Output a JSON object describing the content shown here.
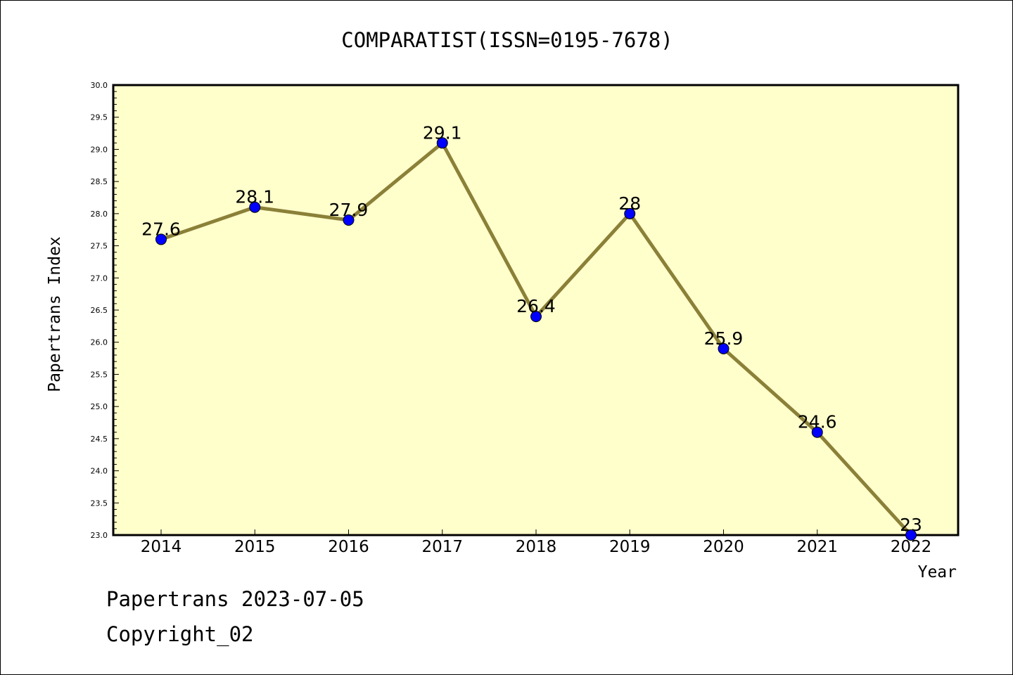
{
  "footer": {
    "line1": "Papertrans 2023-07-05",
    "line2": "Copyright_02"
  },
  "chart_data": {
    "type": "line",
    "title": "COMPARATIST(ISSN=0195-7678)",
    "xlabel": "Year",
    "ylabel": "Papertrans Index",
    "categories": [
      "2014",
      "2015",
      "2016",
      "2017",
      "2018",
      "2019",
      "2020",
      "2021",
      "2022"
    ],
    "series": [
      {
        "values": [
          27.6,
          28.1,
          27.9,
          29.1,
          26.4,
          28.0,
          25.9,
          24.6,
          23.0
        ],
        "labels": [
          "27.6",
          "28.1",
          "27.9",
          "29.1",
          "26.4",
          "28",
          "25.9",
          "24.6",
          "23"
        ],
        "line_color": "#8b8038",
        "marker_color": "#0000ff"
      }
    ],
    "ylim": [
      23.0,
      30.0
    ],
    "yticks": [
      "23.0",
      "23.5",
      "24.0",
      "24.5",
      "25.0",
      "25.5",
      "26.0",
      "26.5",
      "27.0",
      "27.5",
      "28.0",
      "28.5",
      "29.0",
      "29.5",
      "30.0"
    ],
    "plot_background": "#ffffcc",
    "grid": false,
    "legend": "none"
  }
}
